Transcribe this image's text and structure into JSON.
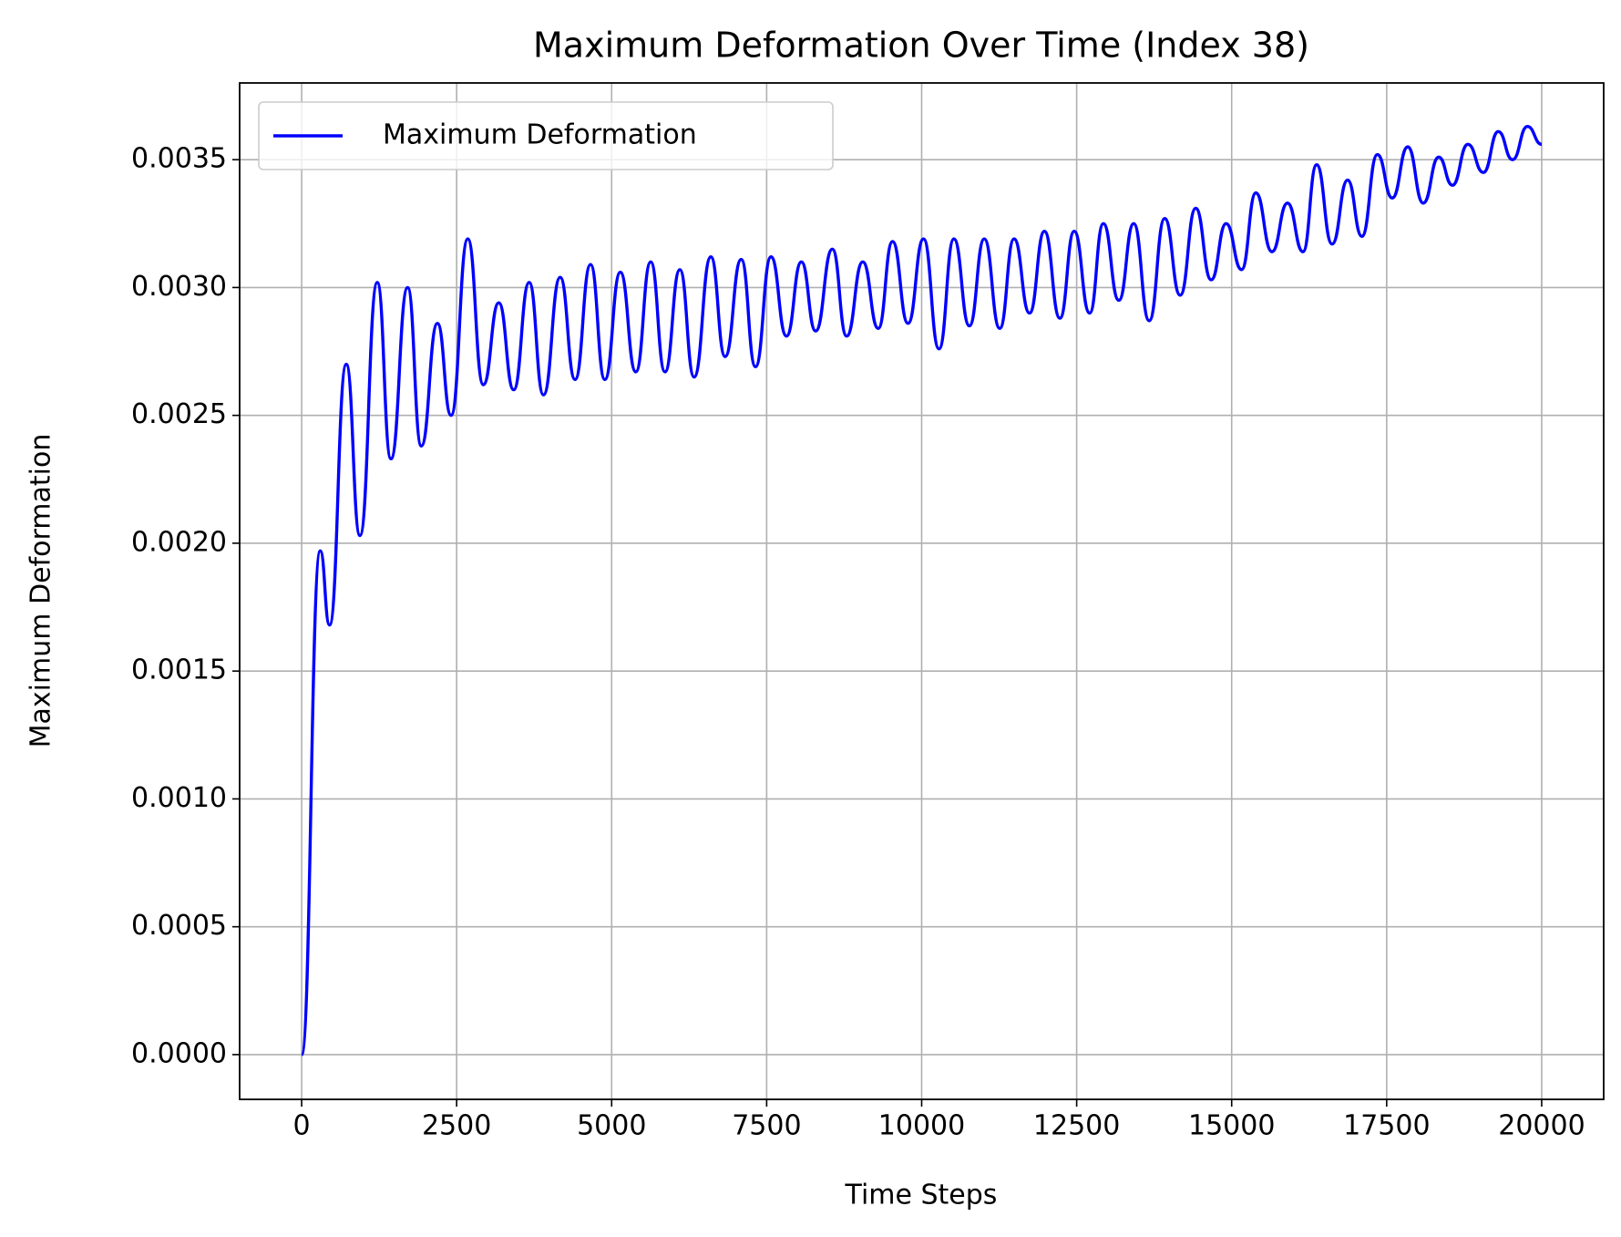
{
  "chart_data": {
    "type": "line",
    "title": "Maximum Deformation Over Time (Index 38)",
    "xlabel": "Time Steps",
    "ylabel": "Maximum Deformation",
    "x": [
      0,
      300,
      450,
      720,
      940,
      1220,
      1440,
      1710,
      1930,
      2190,
      2410,
      2680,
      2930,
      3180,
      3420,
      3670,
      3900,
      4170,
      4410,
      4660,
      4890,
      5140,
      5390,
      5630,
      5860,
      6100,
      6330,
      6600,
      6830,
      7090,
      7320,
      7570,
      7820,
      8060,
      8290,
      8560,
      8790,
      9050,
      9300,
      9530,
      9780,
      10030,
      10280,
      10520,
      10770,
      11010,
      11260,
      11490,
      11740,
      11980,
      12230,
      12460,
      12710,
      12930,
      13180,
      13420,
      13670,
      13920,
      14170,
      14420,
      14670,
      14910,
      15160,
      15390,
      15650,
      15900,
      16150,
      16370,
      16620,
      16870,
      17100,
      17350,
      17590,
      17840,
      18090,
      18340,
      18560,
      18810,
      19060,
      19300,
      19530,
      19770,
      20000
    ],
    "series": [
      {
        "name": "Maximum Deformation",
        "color": "#0000ff",
        "values": [
          0,
          0.00197,
          0.00168,
          0.0027,
          0.00203,
          0.00302,
          0.00233,
          0.003,
          0.00238,
          0.00286,
          0.0025,
          0.00319,
          0.00262,
          0.00294,
          0.0026,
          0.00302,
          0.00258,
          0.00304,
          0.00264,
          0.00309,
          0.00264,
          0.00306,
          0.00267,
          0.0031,
          0.00267,
          0.00307,
          0.00265,
          0.00312,
          0.00273,
          0.00311,
          0.00269,
          0.00312,
          0.00281,
          0.0031,
          0.00283,
          0.00315,
          0.00281,
          0.0031,
          0.00284,
          0.00318,
          0.00286,
          0.00319,
          0.00276,
          0.00319,
          0.00285,
          0.00319,
          0.00284,
          0.00319,
          0.0029,
          0.00322,
          0.00288,
          0.00322,
          0.0029,
          0.00325,
          0.00295,
          0.00325,
          0.00287,
          0.00327,
          0.00297,
          0.00331,
          0.00303,
          0.00325,
          0.00307,
          0.00337,
          0.00314,
          0.00333,
          0.00314,
          0.00348,
          0.00317,
          0.00342,
          0.0032,
          0.00352,
          0.00335,
          0.00355,
          0.00333,
          0.00351,
          0.0034,
          0.00356,
          0.00345,
          0.00361,
          0.0035,
          0.00363,
          0.00356
        ]
      }
    ],
    "xlim": [
      -1000,
      21000
    ],
    "ylim": [
      -0.000175,
      0.0038
    ],
    "xticks": [
      0,
      2500,
      5000,
      7500,
      10000,
      12500,
      15000,
      17500,
      20000
    ],
    "yticks": [
      {
        "value": 0,
        "label": "0.0000"
      },
      0.0005,
      {
        "value": 0.001,
        "label": "0.0010"
      },
      0.0015,
      {
        "value": 0.002,
        "label": "0.0020"
      },
      0.0025,
      {
        "value": 0.003,
        "label": "0.0030"
      },
      0.0035
    ],
    "grid": true,
    "legend": "upper left"
  }
}
